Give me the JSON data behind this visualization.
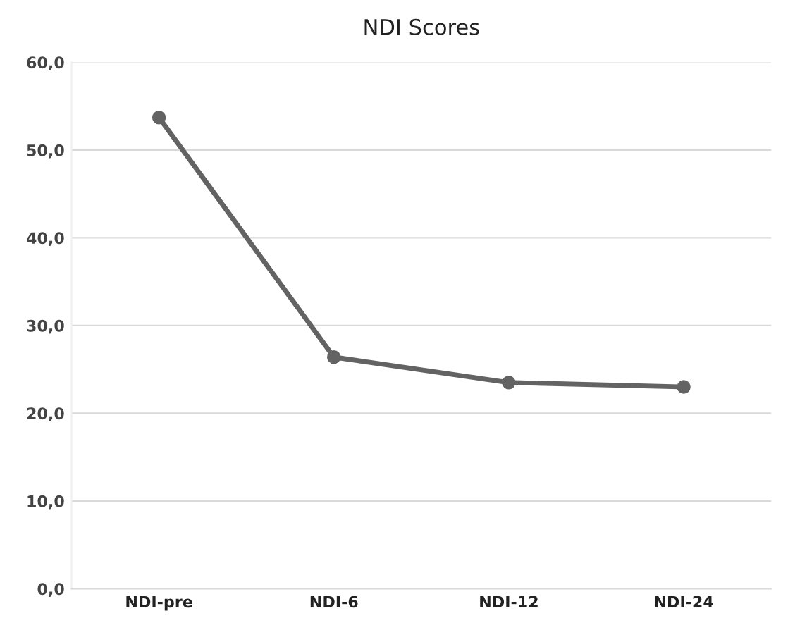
{
  "chart_data": {
    "type": "line",
    "title": "NDI Scores",
    "categories": [
      "NDI-pre",
      "NDI-6",
      "NDI-12",
      "NDI-24"
    ],
    "series": [
      {
        "color": "#636363",
        "values": [
          53.7,
          26.4,
          23.5,
          23.0
        ]
      }
    ],
    "ylim": [
      0,
      60
    ],
    "yticks": [
      {
        "value": 0,
        "label": "0,0"
      },
      {
        "value": 10,
        "label": "10,0"
      },
      {
        "value": 20,
        "label": "20,0"
      },
      {
        "value": 30,
        "label": "30,0"
      },
      {
        "value": 40,
        "label": "40,0"
      },
      {
        "value": 50,
        "label": "50,0"
      },
      {
        "value": 60,
        "label": "60,0"
      }
    ],
    "grid": "y",
    "marker": "circle",
    "line_style": "solid"
  }
}
